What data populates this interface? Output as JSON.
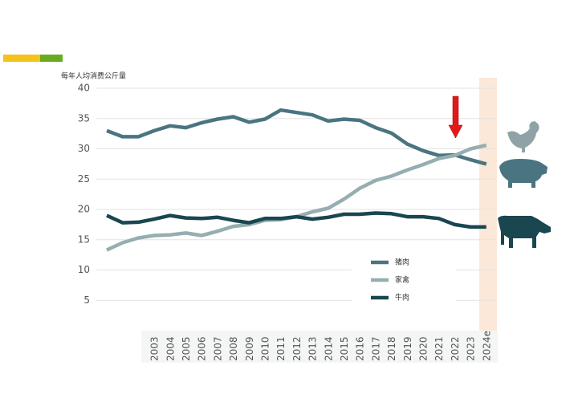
{
  "chart_data": {
    "type": "line",
    "y_label": "每年人均消费公斤量",
    "categories": [
      null,
      null,
      null,
      "2003",
      "2004",
      "2005",
      "2006",
      "2007",
      "2008",
      "2009",
      "2010",
      "2011",
      "2012",
      "2013",
      "2014",
      "2015",
      "2016",
      "2017",
      "2018",
      "2019",
      "2020",
      "2021",
      "2022",
      "2023",
      "2024e"
    ],
    "series": [
      {
        "name": "猪肉",
        "color": "#4a7580",
        "values": [
          33,
          32,
          32,
          33,
          33.8,
          33.5,
          34.3,
          34.9,
          35.3,
          34.4,
          34.9,
          36.4,
          36,
          35.6,
          34.6,
          34.9,
          34.7,
          33.5,
          32.6,
          30.8,
          29.7,
          28.9,
          29,
          28.2,
          27.5
        ]
      },
      {
        "name": "家禽",
        "color": "#96aeb1",
        "values": [
          13.3,
          14.5,
          15.3,
          15.7,
          15.8,
          16.1,
          15.7,
          16.4,
          17.2,
          17.5,
          18.2,
          18.3,
          18.8,
          19.6,
          20.2,
          21.7,
          23.5,
          24.8,
          25.5,
          26.5,
          27.4,
          28.4,
          28.9,
          30,
          30.6
        ]
      },
      {
        "name": "牛肉",
        "color": "#1a4650",
        "values": [
          19,
          17.8,
          17.9,
          18.4,
          19,
          18.6,
          18.5,
          18.7,
          18.2,
          17.8,
          18.5,
          18.5,
          18.8,
          18.4,
          18.7,
          19.2,
          19.2,
          19.4,
          19.3,
          18.8,
          18.8,
          18.5,
          17.5,
          17.1,
          17.1
        ]
      }
    ],
    "ylim": [
      0,
      40
    ],
    "yticks": [
      5,
      10,
      15,
      20,
      25,
      30,
      35,
      40
    ],
    "grid": true
  }
}
